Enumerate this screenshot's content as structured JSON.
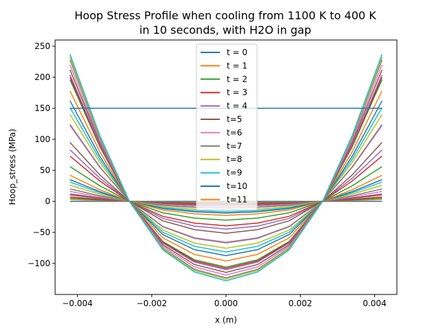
{
  "chart_data": {
    "type": "line",
    "title_line1": "Hoop Stress Profile when cooling from 1100 K to 400 K",
    "title_line2": "in 10 seconds, with H2O in gap",
    "xlabel": "x (m)",
    "ylabel": "Hoop_stress (MPa)",
    "xlim": [
      -0.0046,
      0.0046
    ],
    "ylim": [
      -150,
      260
    ],
    "xticks": [
      -0.004,
      -0.002,
      0.0,
      0.002,
      0.004
    ],
    "xtick_labels": [
      "−0.004",
      "−0.002",
      "0.000",
      "0.002",
      "0.004"
    ],
    "yticks": [
      -100,
      -50,
      0,
      50,
      100,
      150,
      200,
      250
    ],
    "ytick_labels": [
      "−100",
      "−50",
      "0",
      "50",
      "100",
      "150",
      "200",
      "250"
    ],
    "grid": false,
    "legend_position": "upper-center",
    "x": [
      -0.0042,
      -0.0034,
      -0.0026,
      -0.0017,
      -0.00085,
      0.0,
      0.00085,
      0.0017,
      0.0026,
      0.0034,
      0.0042
    ],
    "edge_values": [
      0,
      3,
      5,
      7,
      10,
      12,
      16,
      20,
      26,
      31,
      35,
      42,
      56,
      73,
      83,
      95,
      122,
      124,
      140,
      151,
      162,
      178,
      196,
      200,
      204,
      212,
      220,
      228,
      232,
      237
    ],
    "series": [
      {
        "name": "t = 0",
        "color": "#1f77b4",
        "values": [
          150,
          150,
          150,
          150,
          150,
          150,
          150,
          150,
          150,
          150,
          150
        ]
      },
      {
        "name": "t = 1",
        "color": "#ff7f0e"
      },
      {
        "name": "t = 2",
        "color": "#2ca02c"
      },
      {
        "name": "t = 3",
        "color": "#d62728"
      },
      {
        "name": "t = 4",
        "color": "#9467bd"
      },
      {
        "name": "t=5",
        "color": "#8c564b"
      },
      {
        "name": "t=6",
        "color": "#e377c2"
      },
      {
        "name": "t=7",
        "color": "#7f7f7f"
      },
      {
        "name": "t=8",
        "color": "#bcbd22"
      },
      {
        "name": "t=9",
        "color": "#17becf"
      },
      {
        "name": "t=10",
        "color": "#1f77b4"
      },
      {
        "name": "t=11",
        "color": "#ff7f0e"
      }
    ]
  }
}
